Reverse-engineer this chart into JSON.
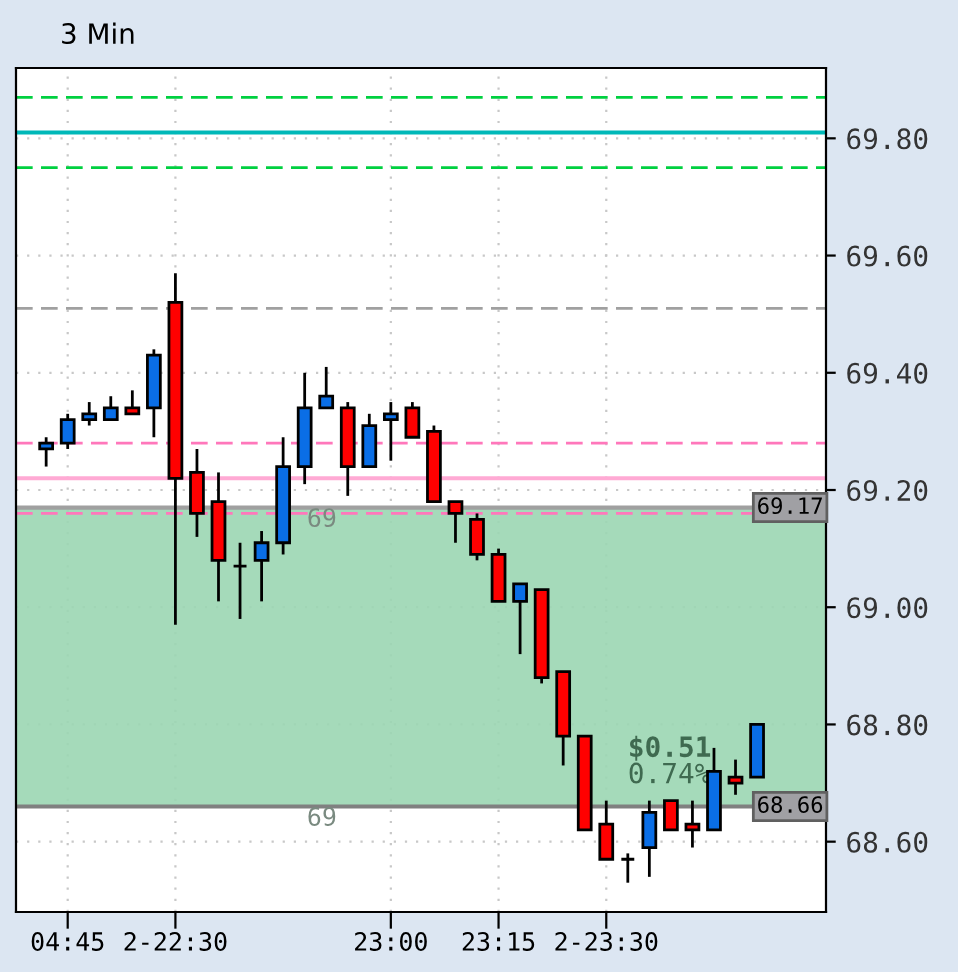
{
  "chart_data": {
    "type": "candlestick",
    "title": "3 Min",
    "categories": [
      null,
      "04:45",
      null,
      null,
      null,
      null,
      "2-22:30",
      null,
      null,
      null,
      null,
      null,
      null,
      null,
      null,
      null,
      "23:00",
      null,
      null,
      null,
      null,
      "23:15",
      null,
      null,
      null,
      null,
      "2-23:30",
      null,
      null,
      null,
      null,
      null,
      null,
      null
    ],
    "ohlc": [
      [
        69.27,
        69.29,
        69.24,
        69.28
      ],
      [
        69.28,
        69.33,
        69.27,
        69.32
      ],
      [
        69.32,
        69.35,
        69.31,
        69.33
      ],
      [
        69.32,
        69.36,
        69.32,
        69.34
      ],
      [
        69.34,
        69.37,
        69.33,
        69.33
      ],
      [
        69.34,
        69.44,
        69.29,
        69.43
      ],
      [
        69.52,
        69.57,
        68.97,
        69.22
      ],
      [
        69.23,
        69.27,
        69.12,
        69.16
      ],
      [
        69.18,
        69.23,
        69.01,
        69.08
      ],
      [
        69.07,
        69.11,
        68.98,
        69.07
      ],
      [
        69.08,
        69.13,
        69.01,
        69.11
      ],
      [
        69.11,
        69.29,
        69.09,
        69.24
      ],
      [
        69.24,
        69.4,
        69.21,
        69.34
      ],
      [
        69.34,
        69.41,
        69.34,
        69.36
      ],
      [
        69.34,
        69.35,
        69.19,
        69.24
      ],
      [
        69.24,
        69.33,
        69.24,
        69.31
      ],
      [
        69.32,
        69.35,
        69.25,
        69.33
      ],
      [
        69.34,
        69.35,
        69.29,
        69.29
      ],
      [
        69.3,
        69.31,
        69.18,
        69.18
      ],
      [
        69.18,
        69.18,
        69.11,
        69.16
      ],
      [
        69.15,
        69.16,
        69.08,
        69.09
      ],
      [
        69.09,
        69.1,
        69.01,
        69.01
      ],
      [
        69.01,
        69.04,
        68.92,
        69.04
      ],
      [
        69.03,
        69.03,
        68.87,
        68.88
      ],
      [
        68.89,
        68.89,
        68.73,
        68.78
      ],
      [
        68.78,
        68.78,
        68.62,
        68.62
      ],
      [
        68.63,
        68.67,
        68.57,
        68.57
      ],
      [
        68.57,
        68.58,
        68.53,
        68.57
      ],
      [
        68.59,
        68.67,
        68.54,
        68.65
      ],
      [
        68.67,
        68.67,
        68.62,
        68.62
      ],
      [
        68.63,
        68.67,
        68.59,
        68.62
      ],
      [
        68.62,
        68.76,
        68.62,
        68.72
      ],
      [
        68.71,
        68.74,
        68.68,
        68.7
      ],
      [
        68.71,
        68.8,
        68.71,
        68.8
      ]
    ],
    "colors": [
      "#0a6ee6",
      "#0a6ee6",
      "#0a6ee6",
      "#0a6ee6",
      "#ff0000",
      "#0a6ee6",
      "#ff0000",
      "#ff0000",
      "#ff0000",
      "#000000",
      "#0a6ee6",
      "#0a6ee6",
      "#0a6ee6",
      "#0a6ee6",
      "#ff0000",
      "#0a6ee6",
      "#0a6ee6",
      "#ff0000",
      "#ff0000",
      "#ff0000",
      "#ff0000",
      "#ff0000",
      "#0a6ee6",
      "#ff0000",
      "#ff0000",
      "#ff0000",
      "#ff0000",
      "#000000",
      "#0a6ee6",
      "#ff0000",
      "#ff0000",
      "#0a6ee6",
      "#ff0000",
      "#0a6ee6"
    ],
    "ylim": [
      68.48,
      69.92
    ],
    "yticks": [
      {
        "value": 68.6,
        "label": "68.60"
      },
      {
        "value": 68.8,
        "label": "68.80"
      },
      {
        "value": 69.0,
        "label": "69.00"
      },
      {
        "value": 69.2,
        "label": "69.20"
      },
      {
        "value": 69.4,
        "label": "69.40"
      },
      {
        "value": 69.6,
        "label": "69.60"
      },
      {
        "value": 69.8,
        "label": "69.80"
      }
    ],
    "grid": true,
    "ref_lines": [
      {
        "axis": "y",
        "value": 69.87,
        "color": "#00d040",
        "line_style": "dashed"
      },
      {
        "axis": "y",
        "value": 69.81,
        "color": "#00b8b8",
        "line_style": "solid"
      },
      {
        "axis": "y",
        "value": 69.75,
        "color": "#00d040",
        "line_style": "dashed"
      },
      {
        "axis": "y",
        "value": 69.51,
        "color": "#a0a0a0",
        "line_style": "dashed"
      },
      {
        "axis": "y",
        "value": 69.28,
        "color": "#ff77bb",
        "line_style": "dashed"
      },
      {
        "axis": "y",
        "value": 69.22,
        "color": "#ffaad4",
        "line_style": "solid"
      },
      {
        "axis": "y",
        "value": 69.16,
        "color": "#ff77bb",
        "line_style": "dashed"
      },
      {
        "axis": "y",
        "value": 69.17,
        "label": "69.17",
        "color": "#a0a0a0",
        "line_style": "solid"
      },
      {
        "axis": "y",
        "value": 68.66,
        "label": "68.66",
        "color": "#808080",
        "line_style": "solid"
      }
    ],
    "bands": [
      {
        "axis": "y",
        "from": 68.66,
        "to": 69.17,
        "color": "#9bd6b3"
      }
    ],
    "annotations": [
      "69",
      "69",
      "$0.51",
      "0.74%"
    ]
  }
}
